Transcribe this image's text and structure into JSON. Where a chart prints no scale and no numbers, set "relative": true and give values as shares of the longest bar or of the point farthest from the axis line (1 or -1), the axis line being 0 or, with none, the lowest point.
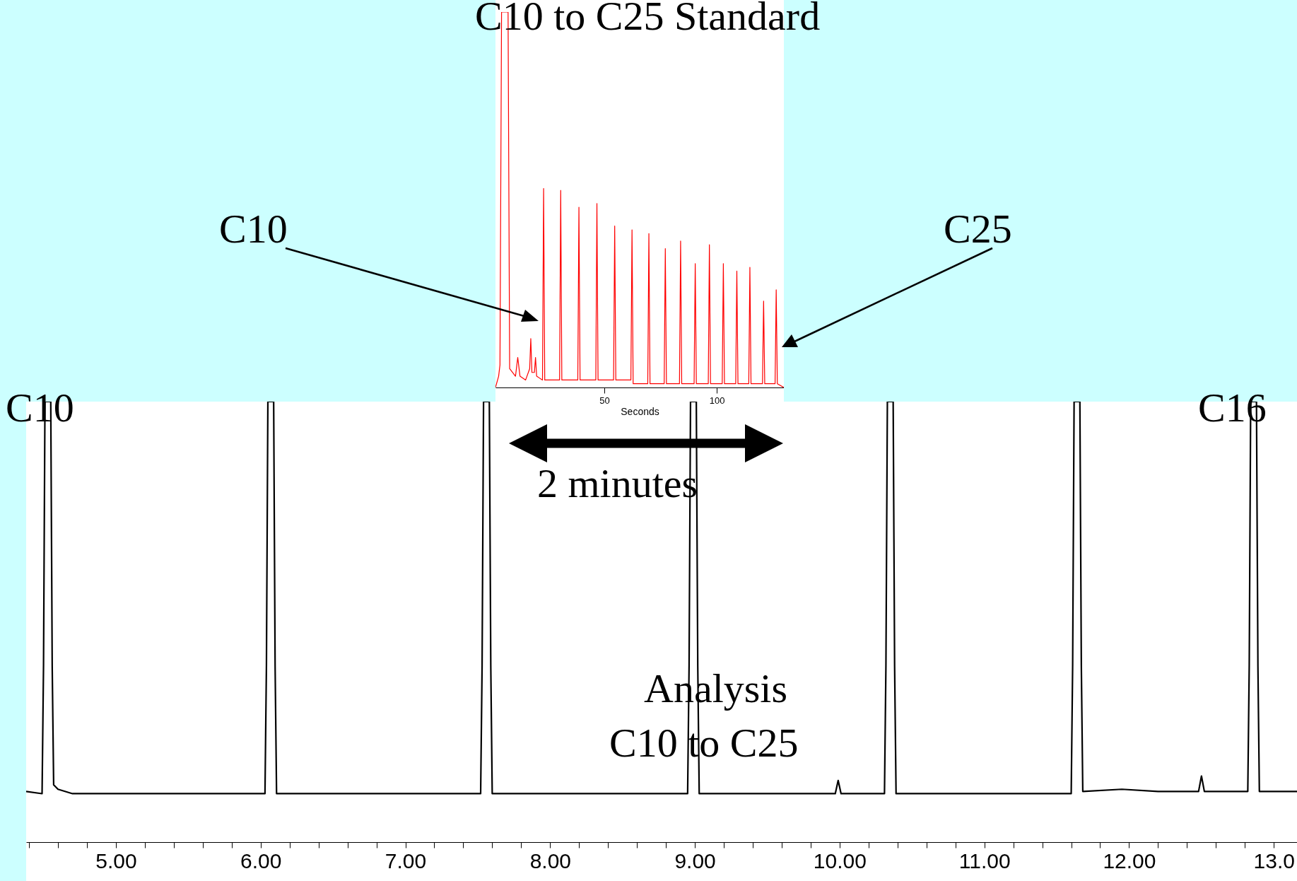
{
  "chart_data": [
    {
      "type": "line",
      "relative": true,
      "xlim": [
        4.38,
        13.16
      ],
      "xticks": [
        {
          "value": 4.4,
          "label": null
        },
        {
          "value": 4.6,
          "label": null
        },
        {
          "value": 4.8,
          "label": null
        },
        {
          "value": 5,
          "label": "5.00"
        },
        {
          "value": 5.2,
          "label": null
        },
        {
          "value": 5.4,
          "label": null
        },
        {
          "value": 5.6,
          "label": null
        },
        {
          "value": 5.8,
          "label": null
        },
        {
          "value": 6,
          "label": "6.00"
        },
        {
          "value": 6.2,
          "label": null
        },
        {
          "value": 6.4,
          "label": null
        },
        {
          "value": 6.6,
          "label": null
        },
        {
          "value": 6.8,
          "label": null
        },
        {
          "value": 7,
          "label": "7.00"
        },
        {
          "value": 7.2,
          "label": null
        },
        {
          "value": 7.4,
          "label": null
        },
        {
          "value": 7.6,
          "label": null
        },
        {
          "value": 7.8,
          "label": null
        },
        {
          "value": 8,
          "label": "8.00"
        },
        {
          "value": 8.2,
          "label": null
        },
        {
          "value": 8.4,
          "label": null
        },
        {
          "value": 8.6,
          "label": null
        },
        {
          "value": 8.8,
          "label": null
        },
        {
          "value": 9,
          "label": "9.00"
        },
        {
          "value": 9.2,
          "label": null
        },
        {
          "value": 9.4,
          "label": null
        },
        {
          "value": 9.6,
          "label": null
        },
        {
          "value": 9.8,
          "label": null
        },
        {
          "value": 10,
          "label": "10.00"
        },
        {
          "value": 10.2,
          "label": null
        },
        {
          "value": 10.4,
          "label": null
        },
        {
          "value": 10.6,
          "label": null
        },
        {
          "value": 10.8,
          "label": null
        },
        {
          "value": 11,
          "label": "11.00"
        },
        {
          "value": 11.2,
          "label": null
        },
        {
          "value": 11.4,
          "label": null
        },
        {
          "value": 11.6,
          "label": null
        },
        {
          "value": 11.8,
          "label": null
        },
        {
          "value": 12,
          "label": "12.00"
        },
        {
          "value": 12.2,
          "label": null
        },
        {
          "value": 12.4,
          "label": null
        },
        {
          "value": 12.6,
          "label": null
        },
        {
          "value": 12.8,
          "label": null
        },
        {
          "value": 13,
          "label": "13.0"
        }
      ],
      "series": [
        {
          "color": "#000000",
          "x": [
            4.38,
            4.49,
            4.5,
            4.51,
            4.55,
            4.56,
            4.57,
            4.6,
            4.7,
            5.2,
            5.5,
            6.03,
            6.04,
            6.05,
            6.09,
            6.1,
            6.11,
            6.6,
            7.1,
            7.52,
            7.53,
            7.54,
            7.58,
            7.59,
            7.6,
            8.2,
            8.95,
            8.96,
            8.97,
            9.01,
            9.02,
            9.03,
            9.6,
            9.97,
            9.99,
            10.01,
            10.31,
            10.32,
            10.33,
            10.37,
            10.38,
            10.39,
            11.0,
            11.6,
            11.61,
            11.62,
            11.66,
            11.67,
            11.68,
            11.95,
            12.2,
            12.48,
            12.5,
            12.52,
            12.82,
            12.83,
            12.84,
            12.88,
            12.89,
            12.9,
            13.16
          ],
          "values": [
            0.115,
            0.11,
            0.4,
            1,
            1,
            0.4,
            0.13,
            0.12,
            0.11,
            0.11,
            0.11,
            0.11,
            0.4,
            1,
            1,
            0.4,
            0.11,
            0.11,
            0.11,
            0.11,
            0.4,
            1,
            1,
            0.4,
            0.11,
            0.11,
            0.11,
            0.4,
            1,
            1,
            0.4,
            0.11,
            0.11,
            0.11,
            0.14,
            0.11,
            0.11,
            0.4,
            1,
            1,
            0.4,
            0.11,
            0.11,
            0.11,
            0.4,
            1,
            1,
            0.4,
            0.115,
            0.12,
            0.115,
            0.115,
            0.15,
            0.115,
            0.115,
            0.4,
            1,
            1,
            0.4,
            0.115,
            0.115
          ]
        }
      ],
      "annotations": [
        "C10",
        "C16",
        "Analysis",
        "C10 to C25"
      ]
    },
    {
      "type": "line",
      "relative": true,
      "title": "C10 to C25 Standard",
      "xlabel": "Seconds",
      "xlim": [
        1.6,
        129.8
      ],
      "xticks": [
        50,
        100
      ],
      "series": [
        {
          "color": "#ff0000",
          "x": [
            1.6,
            3.0,
            3.6,
            4.3,
            7.2,
            7.9,
            10.5,
            11.5,
            12.5,
            15,
            16.8,
            17.3,
            17.8,
            18.9,
            19.4,
            19.9,
            22.5,
            23.0,
            23.5,
            30.1,
            30.6,
            31.1,
            38.2,
            38.7,
            39.2,
            46.2,
            46.7,
            47.2,
            54.1,
            54.6,
            55.1,
            61.8,
            62.3,
            62.8,
            69.3,
            69.8,
            70.3,
            76.6,
            77.1,
            77.6,
            83.4,
            83.9,
            84.4,
            89.9,
            90.4,
            90.9,
            96.2,
            96.7,
            97.2,
            102.4,
            102.9,
            103.4,
            108.4,
            108.9,
            109.4,
            114.2,
            114.7,
            115.2,
            120.3,
            120.8,
            121.3,
            125.9,
            126.4,
            126.9,
            129.8
          ],
          "values": [
            0,
            0.03,
            0.06,
            1,
            1,
            0.05,
            0.03,
            0.08,
            0.03,
            0.02,
            0.05,
            0.13,
            0.04,
            0.04,
            0.08,
            0.03,
            0.02,
            0.53,
            0.02,
            0.02,
            0.525,
            0.02,
            0.02,
            0.48,
            0.02,
            0.02,
            0.49,
            0.02,
            0.02,
            0.43,
            0.02,
            0.02,
            0.42,
            0.01,
            0.01,
            0.41,
            0.01,
            0.01,
            0.37,
            0.01,
            0.01,
            0.39,
            0.01,
            0.01,
            0.33,
            0.01,
            0.01,
            0.38,
            0.01,
            0.01,
            0.33,
            0.01,
            0.01,
            0.31,
            0.01,
            0.01,
            0.32,
            0.01,
            0.01,
            0.23,
            0.01,
            0.01,
            0.26,
            0.01,
            0
          ]
        }
      ],
      "annotations": [
        "C10",
        "C25",
        "2 minutes"
      ]
    }
  ]
}
